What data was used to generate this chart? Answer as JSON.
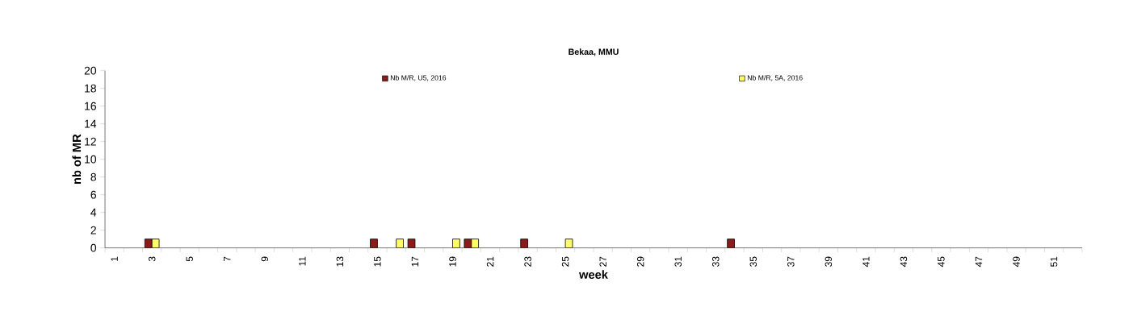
{
  "chart_data": {
    "type": "bar",
    "title": "Bekaa, MMU",
    "xlabel": "week",
    "ylabel": "nb of MR",
    "categories": [
      "1",
      null,
      "3",
      null,
      "5",
      null,
      "7",
      null,
      "9",
      null,
      "11",
      null,
      "13",
      null,
      "15",
      null,
      "17",
      null,
      "19",
      null,
      "21",
      null,
      "23",
      null,
      "25",
      null,
      "27",
      null,
      "29",
      null,
      "31",
      null,
      "33",
      null,
      "35",
      null,
      "37",
      null,
      "39",
      null,
      "41",
      null,
      "43",
      null,
      "45",
      null,
      "47",
      null,
      "49",
      null,
      "51",
      null
    ],
    "series": [
      {
        "name": "Nb M/R, U5, 2016",
        "color": "#8b1a1a",
        "values": [
          null,
          null,
          1,
          null,
          null,
          null,
          null,
          null,
          null,
          null,
          null,
          null,
          null,
          null,
          1,
          null,
          1,
          null,
          null,
          1,
          null,
          null,
          1,
          null,
          null,
          null,
          null,
          null,
          null,
          null,
          null,
          null,
          null,
          1,
          null,
          null,
          null,
          null,
          null,
          null,
          null,
          null,
          null,
          null,
          null,
          null,
          null,
          null,
          null,
          null,
          null,
          null
        ]
      },
      {
        "name": "Nb M/R, 5A, 2016",
        "color": "#ffff66",
        "values": [
          null,
          null,
          1,
          null,
          null,
          null,
          null,
          null,
          null,
          null,
          null,
          null,
          null,
          null,
          null,
          1,
          null,
          null,
          1,
          1,
          null,
          null,
          null,
          null,
          1,
          null,
          null,
          null,
          null,
          null,
          null,
          null,
          null,
          null,
          null,
          null,
          null,
          null,
          null,
          null,
          null,
          null,
          null,
          null,
          null,
          null,
          null,
          null,
          null,
          null,
          null,
          null
        ]
      }
    ],
    "ylim": [
      0,
      20
    ],
    "yticks": [
      0,
      2,
      4,
      6,
      8,
      10,
      12,
      14,
      16,
      18,
      20
    ],
    "legend": "top"
  }
}
